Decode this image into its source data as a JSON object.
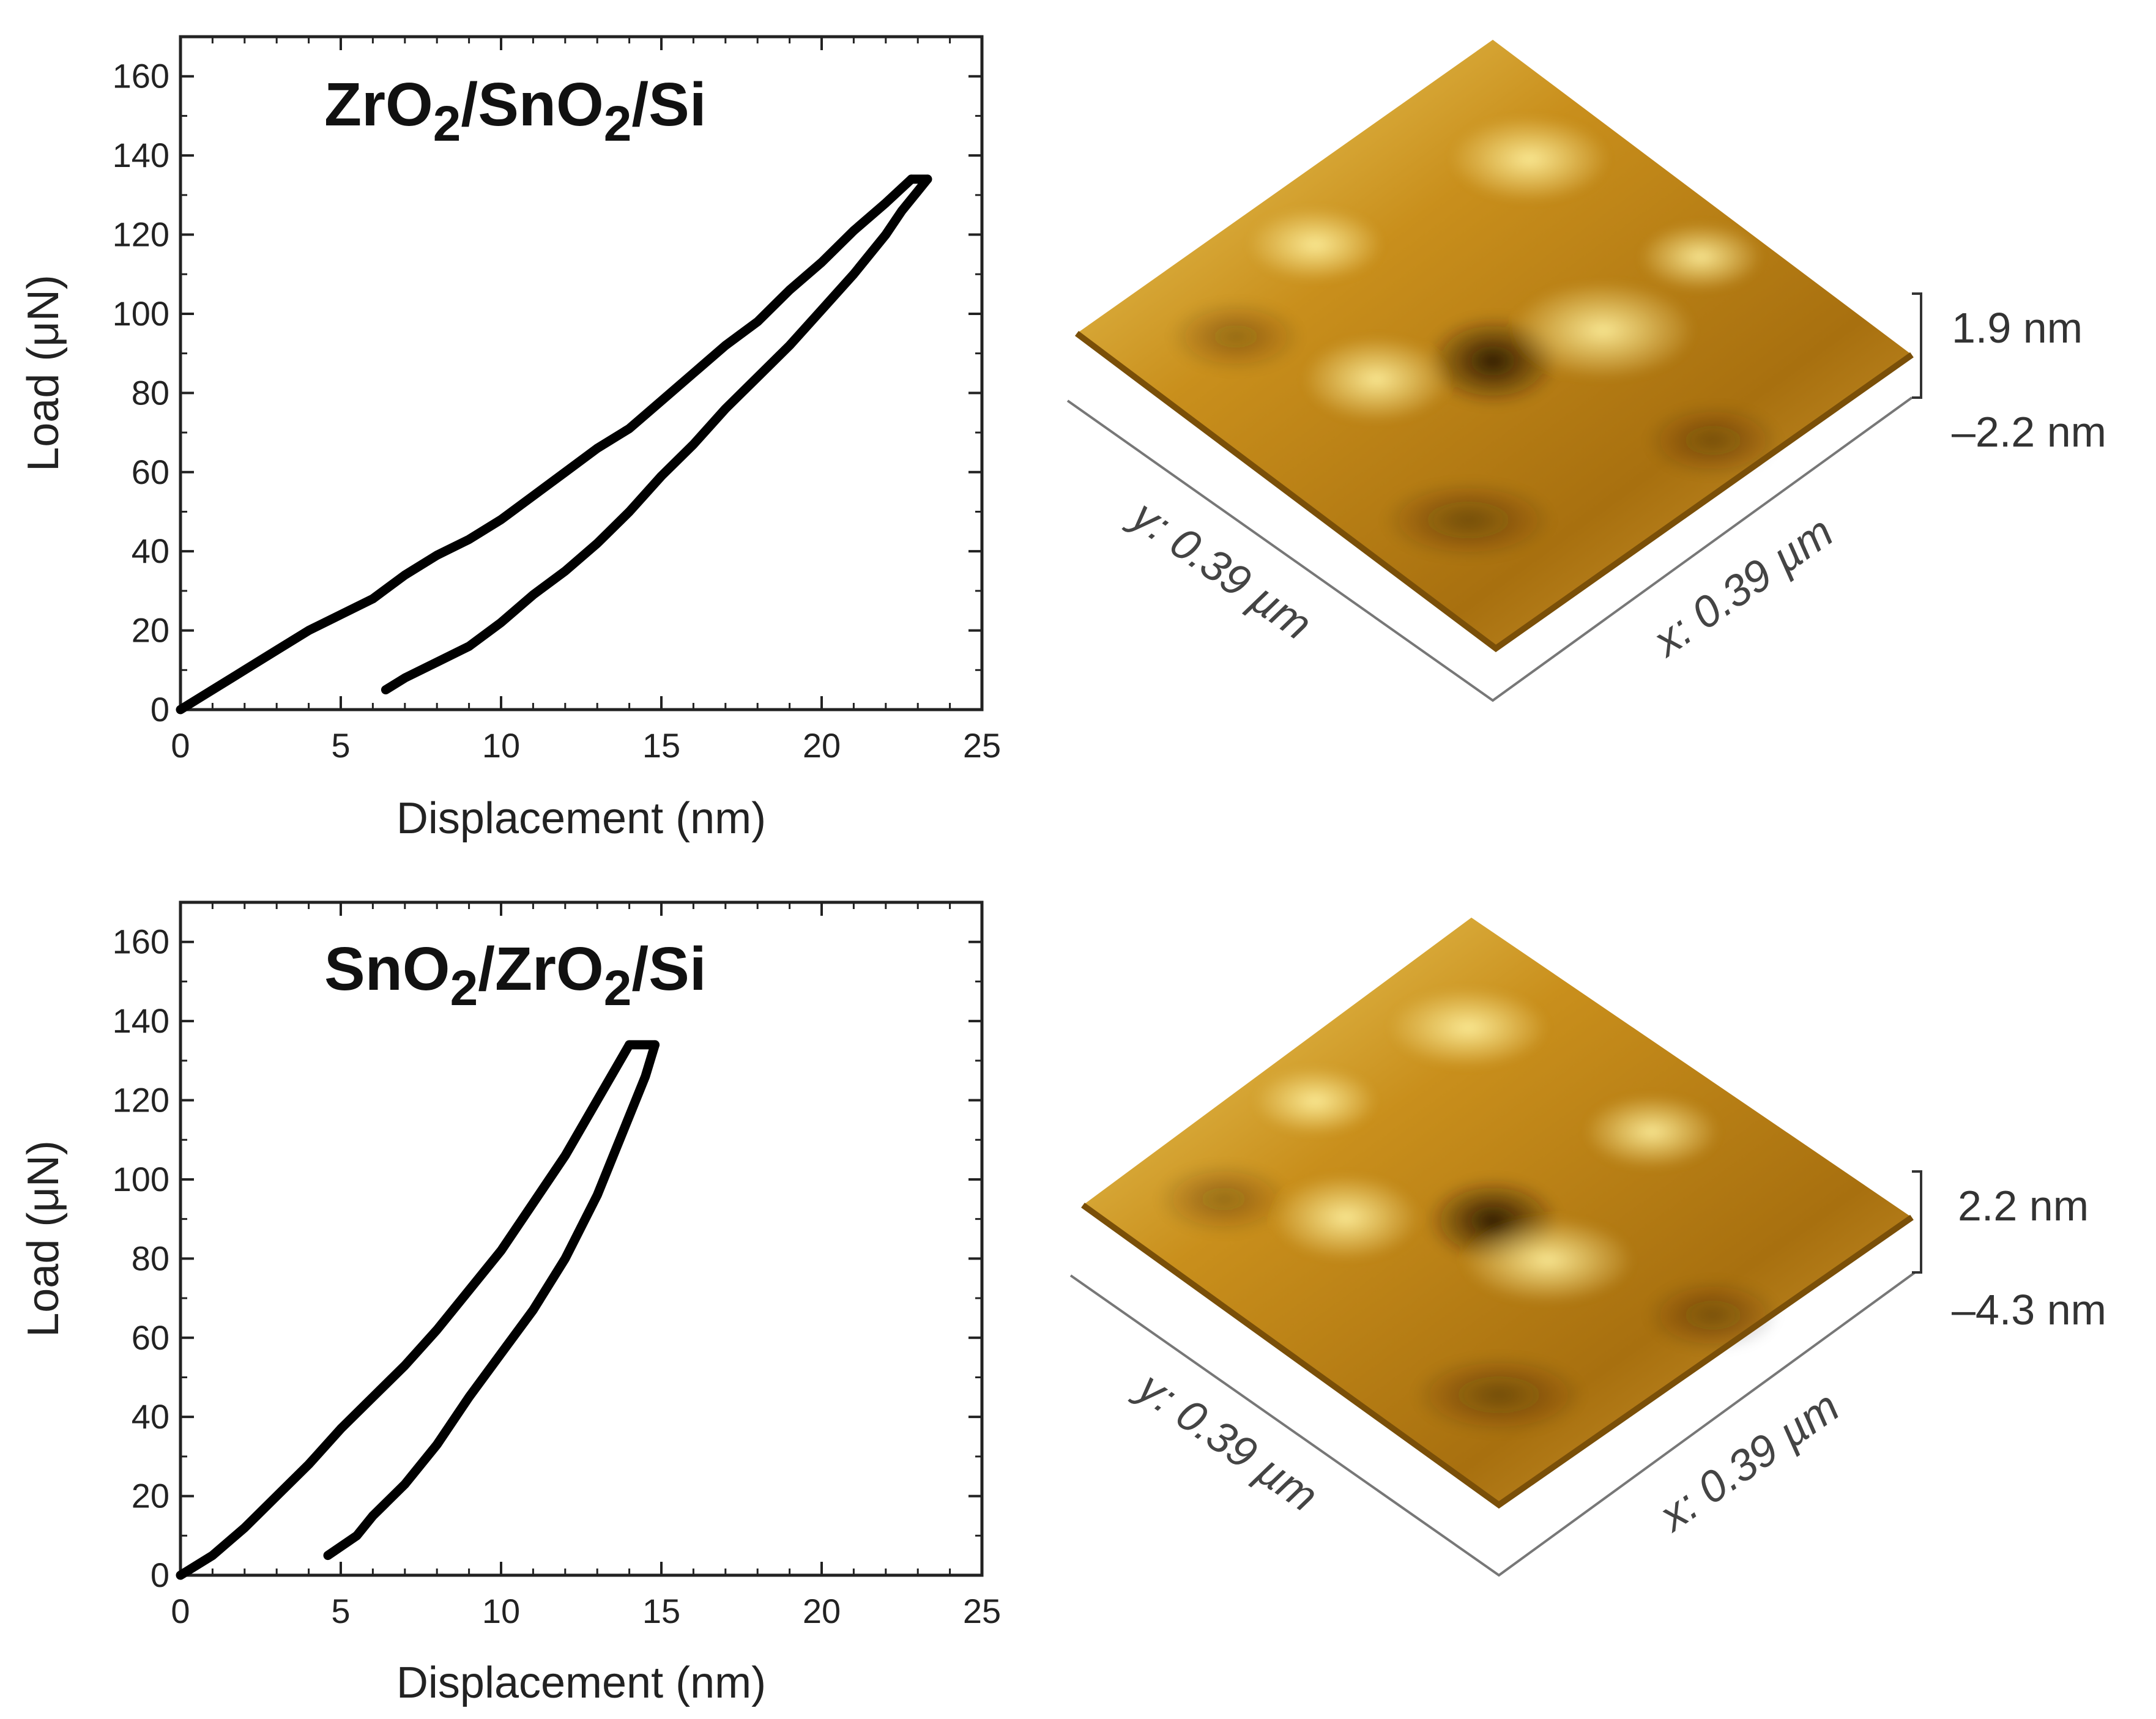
{
  "chart_data": [
    {
      "type": "line",
      "title_parts": [
        "ZrO",
        "2",
        "/SnO",
        "2",
        "/Si"
      ],
      "title": "ZrO2/SnO2/Si",
      "xlabel": "Displacement (nm)",
      "ylabel": "Load (μN)",
      "xlim": [
        0,
        25
      ],
      "ylim": [
        0,
        170
      ],
      "xticks": [
        0,
        5,
        10,
        15,
        20,
        25
      ],
      "yticks": [
        0,
        20,
        40,
        60,
        80,
        100,
        120,
        140,
        160
      ],
      "series": [
        {
          "name": "loading",
          "x": [
            0,
            1,
            2,
            3,
            4,
            5,
            6,
            7,
            8,
            9,
            10,
            11,
            12,
            13,
            14,
            15,
            16,
            17,
            18,
            19,
            20,
            21,
            22,
            22.8
          ],
          "y": [
            0,
            5,
            10,
            15,
            20,
            24,
            28,
            34,
            39,
            43,
            48,
            54,
            60,
            66,
            71,
            78,
            85,
            92,
            98,
            106,
            113,
            121,
            128,
            134
          ]
        },
        {
          "name": "hold",
          "x": [
            22.8,
            23.3
          ],
          "y": [
            134,
            134
          ]
        },
        {
          "name": "unloading",
          "x": [
            23.3,
            23,
            22.5,
            22,
            21,
            20,
            19,
            18,
            17,
            16,
            15,
            14,
            13,
            12,
            11,
            10,
            9,
            8,
            7,
            6.4
          ],
          "y": [
            134,
            131,
            126,
            120,
            110,
            101,
            92,
            84,
            76,
            67,
            59,
            50,
            42,
            35,
            29,
            22,
            16,
            12,
            8,
            5
          ]
        }
      ]
    },
    {
      "type": "line",
      "title_parts": [
        "SnO",
        "2",
        "/ZrO",
        "2",
        "/Si"
      ],
      "title": "SnO2/ZrO2/Si",
      "xlabel": "Displacement (nm)",
      "ylabel": "Load (μN)",
      "xlim": [
        0,
        25
      ],
      "ylim": [
        0,
        170
      ],
      "xticks": [
        0,
        5,
        10,
        15,
        20,
        25
      ],
      "yticks": [
        0,
        20,
        40,
        60,
        80,
        100,
        120,
        140,
        160
      ],
      "series": [
        {
          "name": "loading",
          "x": [
            0,
            1,
            2,
            3,
            4,
            5,
            6,
            7,
            8,
            9,
            10,
            11,
            12,
            13,
            14
          ],
          "y": [
            0,
            5,
            12,
            20,
            28,
            37,
            45,
            53,
            62,
            72,
            82,
            94,
            106,
            120,
            134
          ]
        },
        {
          "name": "hold",
          "x": [
            14,
            14.8
          ],
          "y": [
            134,
            134
          ]
        },
        {
          "name": "unloading",
          "x": [
            14.8,
            14.5,
            14,
            13.5,
            13,
            12,
            11,
            10,
            9,
            8,
            7,
            6,
            5.5,
            4.6
          ],
          "y": [
            134,
            126,
            116,
            106,
            96,
            80,
            67,
            56,
            45,
            33,
            23,
            15,
            10,
            5
          ]
        }
      ]
    }
  ],
  "afm": [
    {
      "z_top": "1.9 nm",
      "z_bottom": "–2.2 nm",
      "x_label": "x: 0.39 µm",
      "y_label": "y: 0.39 µm"
    },
    {
      "z_top": "2.2 nm",
      "z_bottom": "–4.3 nm",
      "x_label": "x: 0.39 µm",
      "y_label": "y: 0.39 µm"
    }
  ],
  "colors": {
    "curve": "#000000",
    "afm_light": "#f7e37a",
    "afm_mid": "#c98f1c",
    "afm_dark": "#3a2202"
  }
}
